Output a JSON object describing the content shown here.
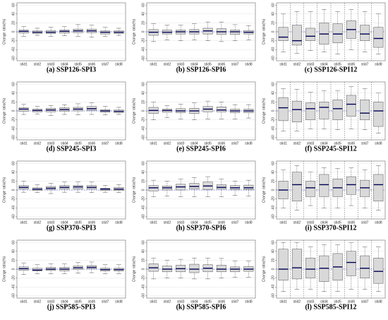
{
  "chart_data": [
    {
      "type": "box",
      "title": "(a) SSP126-SPI3",
      "ylabel": "Change ratio(%)",
      "categories": [
        "stid1",
        "stid2",
        "stid3",
        "stid4",
        "stid5",
        "stid6",
        "stid7",
        "stid8"
      ],
      "ylim": [
        -65,
        65
      ],
      "yticks": [
        -60,
        -40,
        -20,
        0,
        20,
        40,
        60
      ],
      "grid": true,
      "vgrid": false,
      "hline": 0,
      "color": "#d9d9d9",
      "values": [
        [
          -10,
          -3,
          1,
          4,
          12
        ],
        [
          -8,
          -4,
          -1,
          2,
          8
        ],
        [
          -10,
          -4,
          -1,
          3,
          10
        ],
        [
          -9,
          -3,
          1,
          4,
          12
        ],
        [
          -10,
          -2,
          2,
          6,
          16
        ],
        [
          -12,
          -2,
          2,
          6,
          15
        ],
        [
          -10,
          -5,
          -1,
          2,
          10
        ],
        [
          -8,
          -4,
          -1,
          2,
          8
        ]
      ]
    },
    {
      "type": "box",
      "title": "(b) SSP126-SPI6",
      "ylabel": "Change ratio(%)",
      "categories": [
        "stid1",
        "stid2",
        "stid3",
        "stid4",
        "stid5",
        "stid6",
        "stid7",
        "stid8"
      ],
      "ylim": [
        -65,
        65
      ],
      "yticks": [
        -60,
        -40,
        -20,
        0,
        20,
        40,
        60
      ],
      "grid": true,
      "vgrid": false,
      "hline": 0,
      "color": "#d9d9d9",
      "values": [
        [
          -22,
          -8,
          -1,
          5,
          18
        ],
        [
          -18,
          -5,
          -1,
          4,
          15
        ],
        [
          -20,
          -5,
          0,
          4,
          15
        ],
        [
          -18,
          -5,
          0,
          5,
          18
        ],
        [
          -20,
          -5,
          2,
          8,
          22
        ],
        [
          -22,
          -6,
          0,
          7,
          22
        ],
        [
          -20,
          -6,
          0,
          4,
          16
        ],
        [
          -18,
          -5,
          -1,
          3,
          14
        ]
      ]
    },
    {
      "type": "box",
      "title": "(c) SSP126-SPI12",
      "ylabel": "Change ratio(%)",
      "categories": [
        "stid1",
        "stid2",
        "stid3",
        "stid4",
        "stid5",
        "stid6",
        "stid7",
        "stid8"
      ],
      "ylim": [
        -65,
        65
      ],
      "yticks": [
        -60,
        -40,
        -20,
        0,
        20,
        40,
        60
      ],
      "grid": true,
      "vgrid": true,
      "hline": 0,
      "color": "#d9d9d9",
      "values": [
        [
          -45,
          -20,
          -12,
          10,
          40
        ],
        [
          -48,
          -30,
          -20,
          15,
          45
        ],
        [
          -42,
          -20,
          -10,
          8,
          45
        ],
        [
          -45,
          -28,
          -5,
          20,
          50
        ],
        [
          -50,
          -25,
          -5,
          18,
          45
        ],
        [
          -40,
          -15,
          5,
          25,
          50
        ],
        [
          -45,
          -20,
          -5,
          15,
          45
        ],
        [
          -50,
          -35,
          -15,
          10,
          40
        ]
      ]
    },
    {
      "type": "box",
      "title": "(d) SSP245-SPI3",
      "ylabel": "Change ratio(%)",
      "categories": [
        "stid1",
        "stid2",
        "stid3",
        "stid4",
        "stid5",
        "stid6",
        "stid7",
        "stid8"
      ],
      "ylim": [
        -65,
        65
      ],
      "yticks": [
        -60,
        -40,
        -20,
        0,
        20,
        40,
        60
      ],
      "grid": true,
      "vgrid": false,
      "hline": 0,
      "color": "#d9d9d9",
      "values": [
        [
          -8,
          -1,
          4,
          7,
          15
        ],
        [
          -7,
          -2,
          1,
          4,
          10
        ],
        [
          -10,
          -2,
          2,
          6,
          12
        ],
        [
          -8,
          -1,
          3,
          7,
          14
        ],
        [
          -9,
          0,
          4,
          8,
          16
        ],
        [
          -8,
          1,
          5,
          10,
          18
        ],
        [
          -9,
          -3,
          0,
          3,
          10
        ],
        [
          -8,
          -4,
          -1,
          2,
          8
        ]
      ]
    },
    {
      "type": "box",
      "title": "(e) SSP245-SPI6",
      "ylabel": "Change ratio(%)",
      "categories": [
        "stid1",
        "stid2",
        "stid3",
        "stid4",
        "stid5",
        "stid6",
        "stid7",
        "stid8"
      ],
      "ylim": [
        -65,
        65
      ],
      "yticks": [
        -60,
        -40,
        -20,
        0,
        20,
        40,
        60
      ],
      "grid": true,
      "vgrid": false,
      "hline": 0,
      "color": "#d9d9d9",
      "values": [
        [
          -20,
          -6,
          1,
          8,
          20
        ],
        [
          -15,
          -3,
          1,
          4,
          12
        ],
        [
          -18,
          -4,
          0,
          5,
          15
        ],
        [
          -20,
          -6,
          0,
          6,
          18
        ],
        [
          -18,
          -2,
          4,
          10,
          22
        ],
        [
          -18,
          -2,
          2,
          9,
          20
        ],
        [
          -18,
          -4,
          0,
          4,
          14
        ],
        [
          -16,
          -4,
          0,
          4,
          14
        ]
      ]
    },
    {
      "type": "box",
      "title": "(f) SSP245-SPI12",
      "ylabel": "Change ratio(%)",
      "categories": [
        "stid1",
        "stid2",
        "stid3",
        "stid4",
        "stid5",
        "stid6",
        "stid7",
        "stid8"
      ],
      "ylim": [
        -65,
        65
      ],
      "yticks": [
        -60,
        -40,
        -20,
        0,
        20,
        40,
        60
      ],
      "grid": true,
      "vgrid": true,
      "hline": 0,
      "color": "#d9d9d9",
      "values": [
        [
          -45,
          -22,
          7,
          30,
          50
        ],
        [
          -45,
          -25,
          3,
          22,
          48
        ],
        [
          -40,
          -20,
          5,
          18,
          42
        ],
        [
          -40,
          -18,
          8,
          20,
          45
        ],
        [
          -42,
          -20,
          5,
          25,
          45
        ],
        [
          -40,
          -12,
          15,
          35,
          55
        ],
        [
          -42,
          -20,
          -5,
          25,
          50
        ],
        [
          -50,
          -35,
          0,
          20,
          40
        ]
      ]
    },
    {
      "type": "box",
      "title": "(g) SSP370-SPI3",
      "ylabel": "Change ratio(%)",
      "categories": [
        "stid1",
        "stid2",
        "stid3",
        "stid4",
        "stid5",
        "stid6",
        "stid7",
        "stid8"
      ],
      "ylim": [
        -65,
        65
      ],
      "yticks": [
        -60,
        -40,
        -20,
        0,
        20,
        40,
        60
      ],
      "grid": true,
      "vgrid": false,
      "hline": 0,
      "color": "#d9d9d9",
      "values": [
        [
          -5,
          2,
          6,
          10,
          20
        ],
        [
          -6,
          -1,
          2,
          5,
          12
        ],
        [
          -8,
          1,
          4,
          8,
          15
        ],
        [
          -5,
          2,
          6,
          10,
          18
        ],
        [
          -5,
          2,
          7,
          10,
          18
        ],
        [
          -6,
          2,
          6,
          10,
          18
        ],
        [
          -5,
          -1,
          2,
          4,
          10
        ],
        [
          -6,
          -1,
          2,
          6,
          12
        ]
      ]
    },
    {
      "type": "box",
      "title": "(h) SSP370-SPI6",
      "ylabel": "Change ratio(%)",
      "categories": [
        "stid1",
        "stid2",
        "stid3",
        "stid4",
        "stid5",
        "stid6",
        "stid7",
        "stid8"
      ],
      "ylim": [
        -65,
        65
      ],
      "yticks": [
        -60,
        -40,
        -20,
        0,
        20,
        40,
        60
      ],
      "grid": true,
      "vgrid": false,
      "hline": 0,
      "color": "#d9d9d9",
      "values": [
        [
          -15,
          -2,
          5,
          10,
          22
        ],
        [
          -14,
          0,
          5,
          9,
          20
        ],
        [
          -15,
          0,
          7,
          13,
          25
        ],
        [
          -15,
          2,
          8,
          15,
          28
        ],
        [
          -15,
          1,
          9,
          18,
          30
        ],
        [
          -15,
          2,
          6,
          12,
          25
        ],
        [
          -12,
          1,
          5,
          10,
          20
        ],
        [
          -14,
          1,
          5,
          11,
          22
        ]
      ]
    },
    {
      "type": "box",
      "title": "(i) SSP370-SPI12",
      "ylabel": "Change ratio(%)",
      "categories": [
        "stid1",
        "stid2",
        "stid3",
        "stid4",
        "stid5",
        "stid6",
        "stid7",
        "stid8"
      ],
      "ylim": [
        -65,
        65
      ],
      "yticks": [
        -60,
        -40,
        -20,
        0,
        20,
        40,
        60
      ],
      "grid": true,
      "vgrid": true,
      "hline": 0,
      "color": "#d9d9d9",
      "values": [
        [
          -40,
          -20,
          0,
          20,
          45
        ],
        [
          -45,
          -25,
          12,
          40,
          55
        ],
        [
          -35,
          -15,
          5,
          20,
          40
        ],
        [
          -40,
          -15,
          12,
          35,
          50
        ],
        [
          -40,
          -15,
          5,
          25,
          48
        ],
        [
          -35,
          -10,
          12,
          30,
          50
        ],
        [
          -40,
          -15,
          5,
          22,
          45
        ],
        [
          -45,
          -25,
          12,
          35,
          55
        ]
      ]
    },
    {
      "type": "box",
      "title": "(j) SSP585-SPI3",
      "ylabel": "Change ratio(%)",
      "categories": [
        "stid1",
        "stid2",
        "stid3",
        "stid4",
        "stid5",
        "stid6",
        "stid7",
        "stid8"
      ],
      "ylim": [
        -65,
        65
      ],
      "yticks": [
        -60,
        -40,
        -20,
        0,
        20,
        40,
        60
      ],
      "grid": true,
      "vgrid": false,
      "hline": 0,
      "color": "#d9d9d9",
      "values": [
        [
          -12,
          -3,
          1,
          5,
          14
        ],
        [
          -10,
          -4,
          -2,
          2,
          10
        ],
        [
          -10,
          -3,
          0,
          4,
          12
        ],
        [
          -10,
          -4,
          0,
          4,
          12
        ],
        [
          -9,
          -1,
          3,
          7,
          15
        ],
        [
          -8,
          1,
          4,
          8,
          16
        ],
        [
          -10,
          -4,
          -1,
          2,
          10
        ],
        [
          -10,
          -4,
          -1,
          2,
          10
        ]
      ]
    },
    {
      "type": "box",
      "title": "(k) SSP585-SPI6",
      "ylabel": "Change ratio(%)",
      "categories": [
        "stid1",
        "stid2",
        "stid3",
        "stid4",
        "stid5",
        "stid6",
        "stid7",
        "stid8"
      ],
      "ylim": [
        -65,
        65
      ],
      "yticks": [
        -60,
        -40,
        -20,
        0,
        20,
        40,
        60
      ],
      "grid": true,
      "vgrid": false,
      "hline": 0,
      "color": "#d9d9d9",
      "values": [
        [
          -22,
          -5,
          3,
          12,
          25
        ],
        [
          -20,
          -6,
          0,
          7,
          20
        ],
        [
          -20,
          -6,
          1,
          9,
          22
        ],
        [
          -22,
          -8,
          0,
          11,
          25
        ],
        [
          -22,
          -6,
          2,
          10,
          25
        ],
        [
          -20,
          -6,
          0,
          9,
          24
        ],
        [
          -18,
          -6,
          0,
          5,
          18
        ],
        [
          -18,
          -5,
          0,
          6,
          18
        ]
      ]
    },
    {
      "type": "box",
      "title": "(l) SSP585-SPI12",
      "ylabel": "Change ratio(%)",
      "categories": [
        "stid1",
        "stid2",
        "stid3",
        "stid4",
        "stid5",
        "stid6",
        "stid7",
        "stid8"
      ],
      "ylim": [
        -65,
        65
      ],
      "yticks": [
        -60,
        -40,
        -20,
        0,
        20,
        40,
        60
      ],
      "grid": true,
      "vgrid": true,
      "hline": 0,
      "color": "#d9d9d9",
      "values": [
        [
          -50,
          -25,
          0,
          45,
          60
        ],
        [
          -45,
          -22,
          3,
          45,
          60
        ],
        [
          -45,
          -20,
          0,
          25,
          50
        ],
        [
          -50,
          -28,
          2,
          30,
          55
        ],
        [
          -50,
          -25,
          5,
          35,
          55
        ],
        [
          -45,
          -15,
          15,
          40,
          60
        ],
        [
          -45,
          -20,
          2,
          30,
          50
        ],
        [
          -50,
          -32,
          -5,
          25,
          50
        ]
      ]
    }
  ]
}
